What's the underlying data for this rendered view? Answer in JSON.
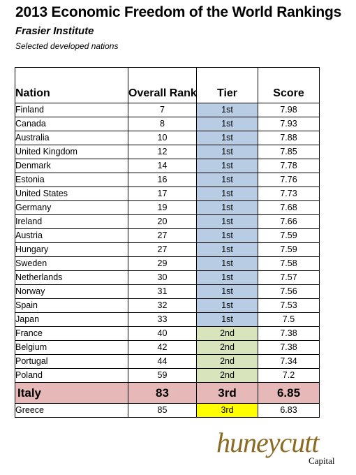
{
  "header": {
    "title": "2013 Economic Freedom of the World Rankings",
    "subtitle": "Frasier Institute",
    "note": "Selected developed nations"
  },
  "table": {
    "columns": [
      "Nation",
      "Overall Ranking",
      "Tier",
      "Score"
    ],
    "tier_colors": {
      "1st": "#b8cce4",
      "2nd": "#d8e4bc",
      "3rd": "#ffff00",
      "highlight_row": "#e6b8b7"
    },
    "rows": [
      {
        "nation": "Finland",
        "rank": "7",
        "tier": "1st",
        "score": "7.98"
      },
      {
        "nation": "Canada",
        "rank": "8",
        "tier": "1st",
        "score": "7.93"
      },
      {
        "nation": "Australia",
        "rank": "10",
        "tier": "1st",
        "score": "7.88"
      },
      {
        "nation": "United Kingdom",
        "rank": "12",
        "tier": "1st",
        "score": "7.85"
      },
      {
        "nation": "Denmark",
        "rank": "14",
        "tier": "1st",
        "score": "7.78"
      },
      {
        "nation": "Estonia",
        "rank": "16",
        "tier": "1st",
        "score": "7.76"
      },
      {
        "nation": "United States",
        "rank": "17",
        "tier": "1st",
        "score": "7.73"
      },
      {
        "nation": "Germany",
        "rank": "19",
        "tier": "1st",
        "score": "7.68"
      },
      {
        "nation": "Ireland",
        "rank": "20",
        "tier": "1st",
        "score": "7.66"
      },
      {
        "nation": "Austria",
        "rank": "27",
        "tier": "1st",
        "score": "7.59"
      },
      {
        "nation": "Hungary",
        "rank": "27",
        "tier": "1st",
        "score": "7.59"
      },
      {
        "nation": "Sweden",
        "rank": "29",
        "tier": "1st",
        "score": "7.58"
      },
      {
        "nation": "Netherlands",
        "rank": "30",
        "tier": "1st",
        "score": "7.57"
      },
      {
        "nation": "Norway",
        "rank": "31",
        "tier": "1st",
        "score": "7.56"
      },
      {
        "nation": "Spain",
        "rank": "32",
        "tier": "1st",
        "score": "7.53"
      },
      {
        "nation": "Japan",
        "rank": "33",
        "tier": "1st",
        "score": "7.5"
      },
      {
        "nation": "France",
        "rank": "40",
        "tier": "2nd",
        "score": "7.38"
      },
      {
        "nation": "Belgium",
        "rank": "42",
        "tier": "2nd",
        "score": "7.38"
      },
      {
        "nation": "Portugal",
        "rank": "44",
        "tier": "2nd",
        "score": "7.34"
      },
      {
        "nation": "Poland",
        "rank": "59",
        "tier": "2nd",
        "score": "7.2"
      },
      {
        "nation": "Italy",
        "rank": "83",
        "tier": "3rd",
        "score": "6.85",
        "highlight": true
      },
      {
        "nation": "Greece",
        "rank": "85",
        "tier": "3rd",
        "score": "6.83"
      }
    ]
  },
  "logo": {
    "name": "huneycutt",
    "sub": "Capital"
  }
}
